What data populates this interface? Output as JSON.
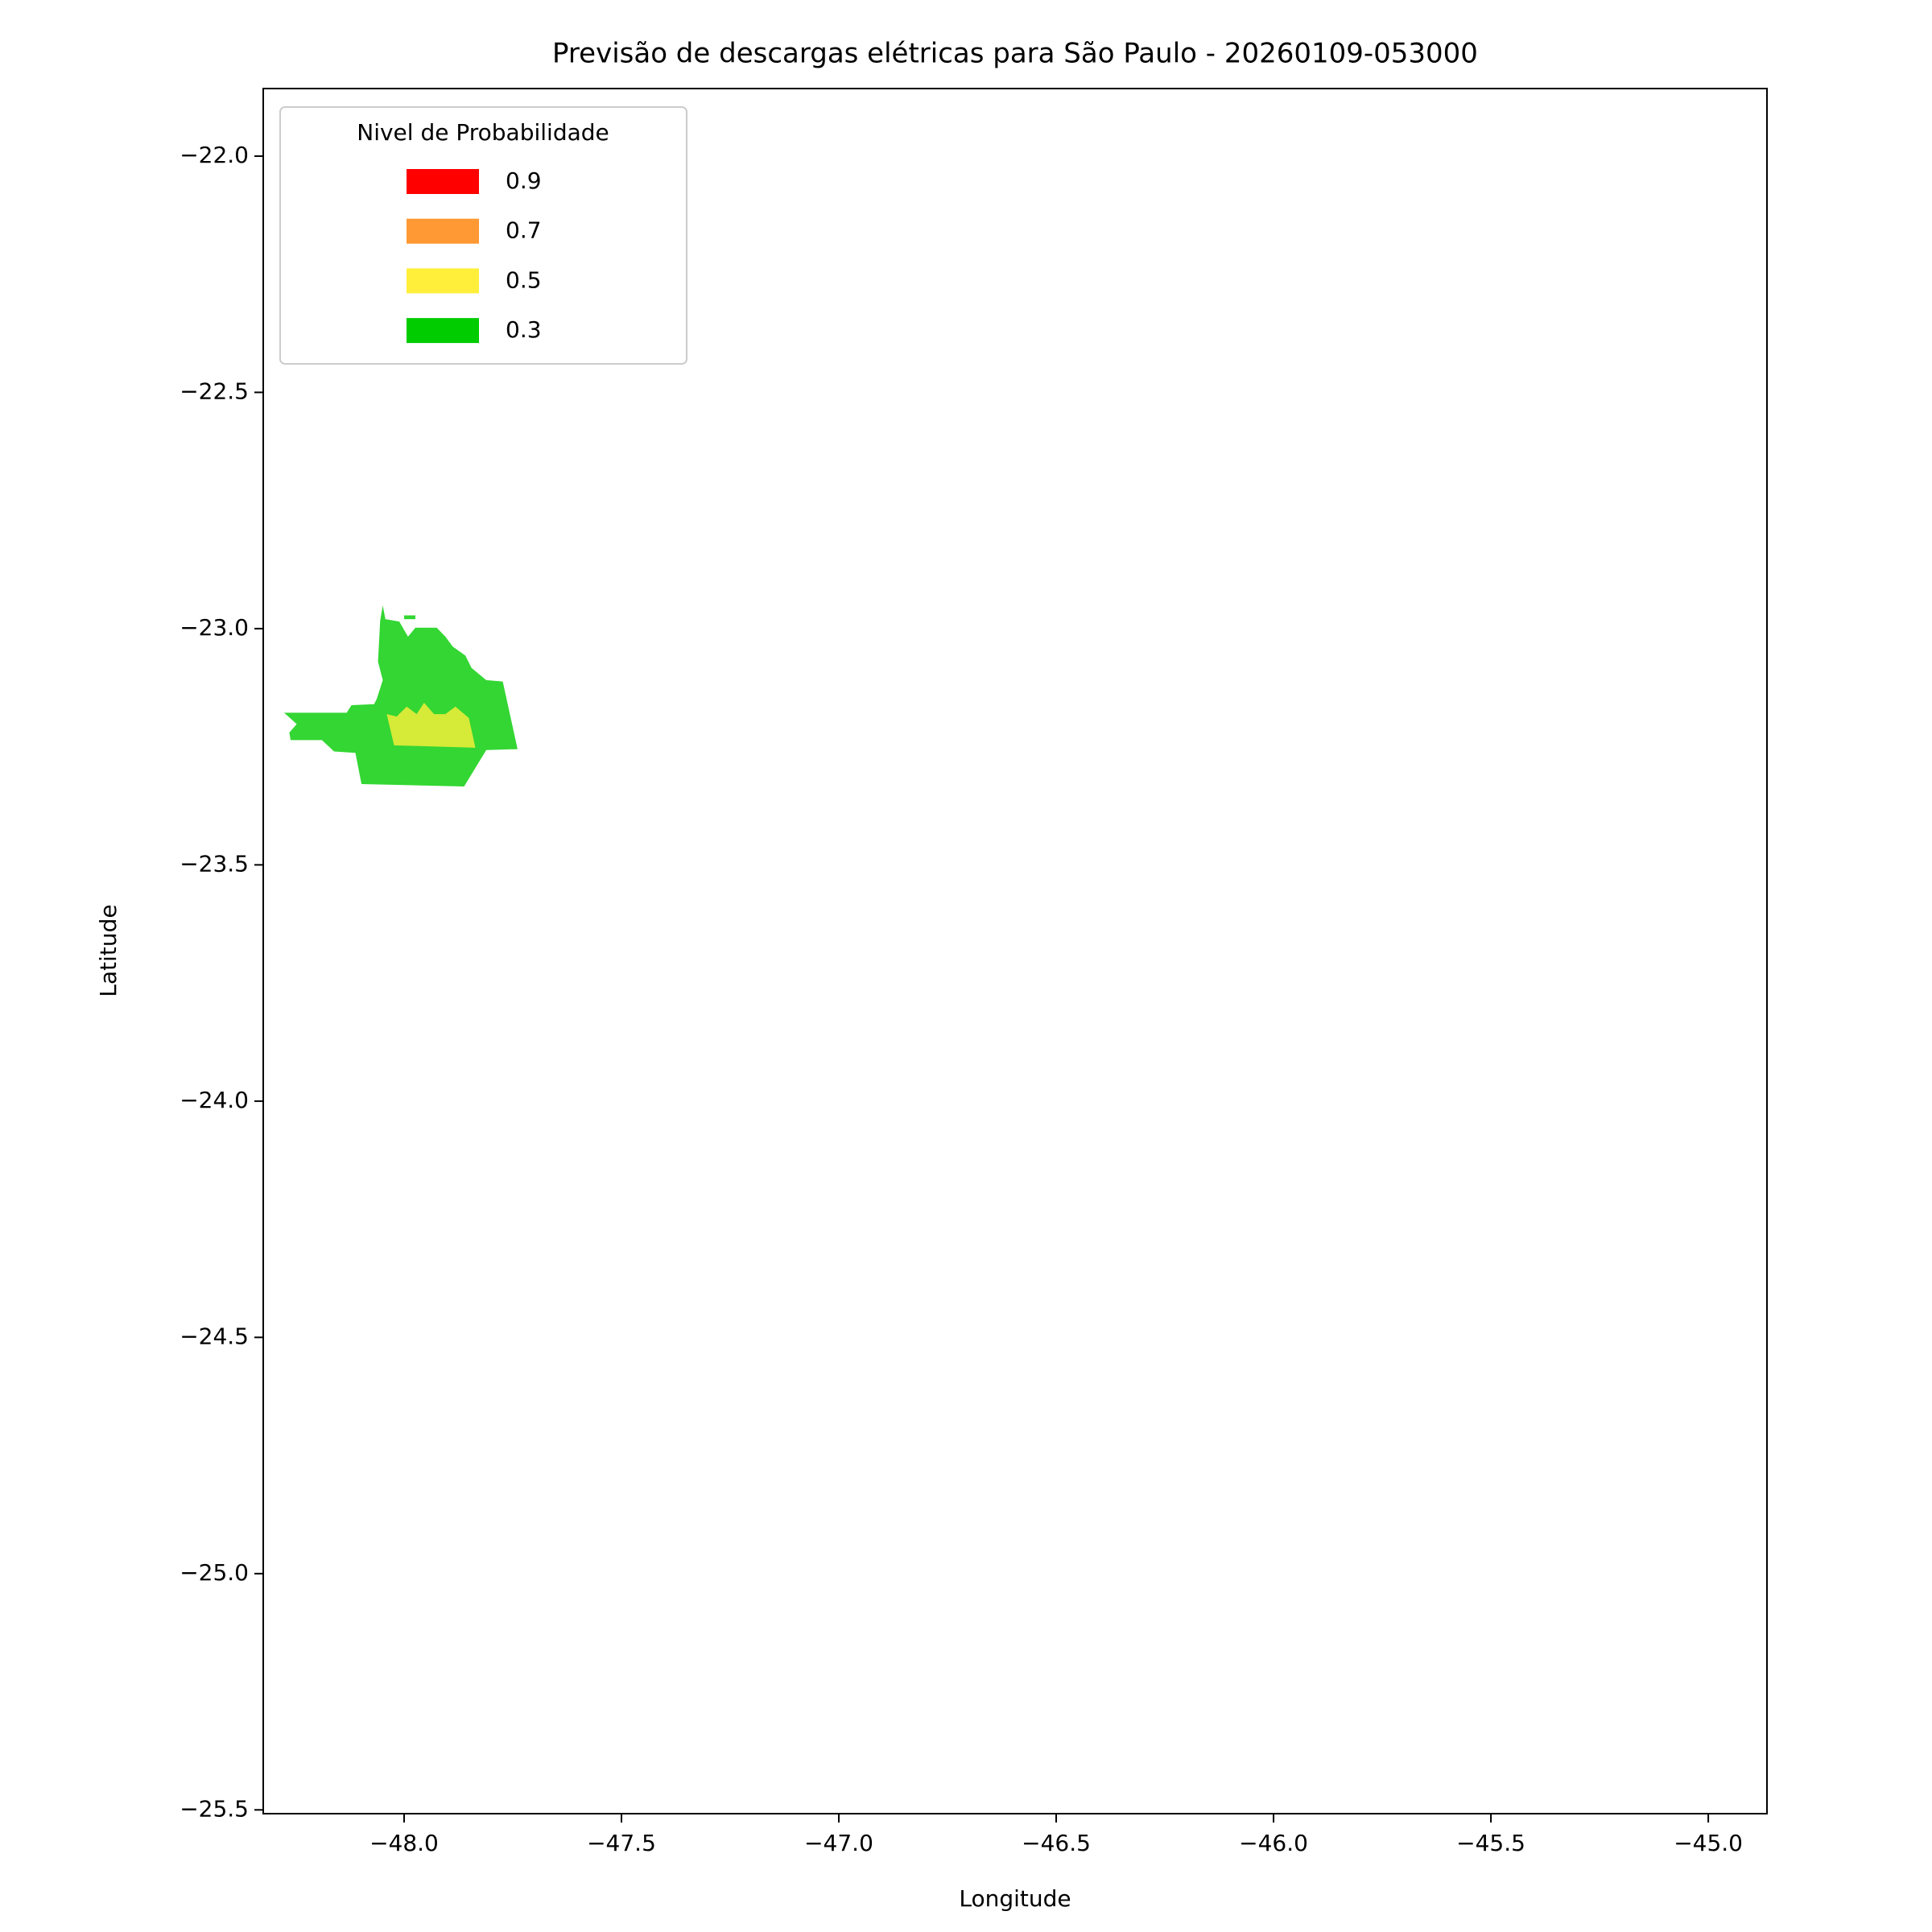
{
  "chart_data": {
    "type": "map",
    "title": "Previsão de descargas elétricas para São Paulo - 20260109-053000",
    "x_label": "Longitude",
    "y_label": "Latitude",
    "xlim": [
      -48.324,
      -44.865
    ],
    "ylim": [
      -25.508,
      -21.857
    ],
    "xticks": [
      {
        "value": -48.0,
        "label": "−48.0"
      },
      {
        "value": -47.5,
        "label": "−47.5"
      },
      {
        "value": -47.0,
        "label": "−47.0"
      },
      {
        "value": -46.5,
        "label": "−46.5"
      },
      {
        "value": -46.0,
        "label": "−46.0"
      },
      {
        "value": -45.5,
        "label": "−45.5"
      },
      {
        "value": -45.0,
        "label": "−45.0"
      }
    ],
    "yticks": [
      {
        "value": -22.0,
        "label": "−22.0"
      },
      {
        "value": -22.5,
        "label": "−22.5"
      },
      {
        "value": -23.0,
        "label": "−23.0"
      },
      {
        "value": -23.5,
        "label": "−23.5"
      },
      {
        "value": -24.0,
        "label": "−24.0"
      },
      {
        "value": -24.5,
        "label": "−24.5"
      },
      {
        "value": -25.0,
        "label": "−25.0"
      },
      {
        "value": -25.5,
        "label": "−25.5"
      }
    ],
    "legend": {
      "title": "Nivel de Probabilidade",
      "location": "upper left",
      "levels": [
        0.9,
        0.7,
        0.5,
        0.3
      ],
      "colors": [
        "#ff0000",
        "#ff9933",
        "#ffef3a",
        "#00cc00"
      ]
    },
    "alpha": 0.8,
    "regions": [
      {
        "level": 0.3,
        "lon": [
          -48.276,
          -48.247,
          -48.264,
          -48.261,
          -48.189,
          -48.161,
          -48.112,
          -48.098,
          -47.862,
          -47.811,
          -47.739,
          -47.773,
          -47.811,
          -47.845,
          -47.859,
          -47.888,
          -47.905,
          -47.925,
          -47.974,
          -47.991,
          -48.011,
          -48.043,
          -48.049,
          -48.055,
          -48.06,
          -48.049,
          -48.063,
          -48.069,
          -48.121,
          -48.132
        ],
        "lat": [
          -23.178,
          -23.202,
          -23.22,
          -23.236,
          -23.236,
          -23.26,
          -23.263,
          -23.329,
          -23.334,
          -23.257,
          -23.255,
          -23.112,
          -23.109,
          -23.083,
          -23.057,
          -23.038,
          -23.017,
          -22.998,
          -22.998,
          -23.017,
          -22.985,
          -22.98,
          -22.951,
          -22.983,
          -23.07,
          -23.109,
          -23.149,
          -23.16,
          -23.162,
          -23.178
        ]
      },
      {
        "level": 0.3,
        "lon": [
          -48.0,
          -47.974,
          -47.974,
          -48.0
        ],
        "lat": [
          -22.972,
          -22.972,
          -22.98,
          -22.98
        ]
      },
      {
        "level": 0.5,
        "lon": [
          -48.04,
          -48.023,
          -47.836,
          -47.851,
          -47.882,
          -47.905,
          -47.931,
          -47.954,
          -47.971,
          -47.994,
          -48.017
        ],
        "lat": [
          -23.181,
          -23.247,
          -23.252,
          -23.189,
          -23.165,
          -23.181,
          -23.181,
          -23.157,
          -23.181,
          -23.165,
          -23.186
        ]
      }
    ]
  }
}
